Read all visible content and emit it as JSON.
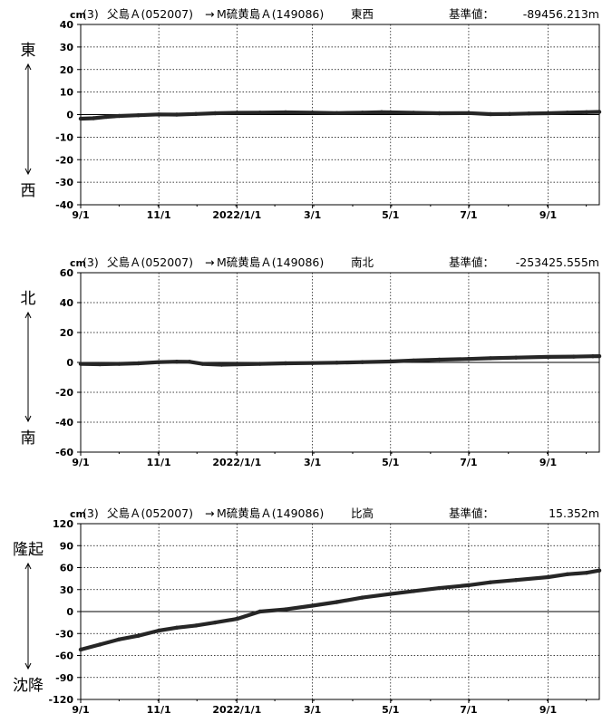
{
  "chart_data": [
    {
      "type": "line",
      "unit": "cm",
      "number": "(3)",
      "station_from": "父島Ａ(052007)",
      "arrow_symbol": "→",
      "station_to": "M硫黄島Ａ(149086)",
      "component": "東西",
      "reference_label": "基準値：",
      "reference_value": "-89456.213m",
      "direction_positive": "東",
      "direction_negative": "西",
      "ylim": [
        -40,
        40
      ],
      "yticks": [
        40,
        30,
        20,
        10,
        0,
        -10,
        -20,
        -30,
        -40
      ],
      "xlim": [
        0,
        405
      ],
      "x_ticks": [
        {
          "label": "9/1",
          "pos": 0
        },
        {
          "label": "11/1",
          "pos": 61
        },
        {
          "label": "2022/1/1",
          "pos": 122
        },
        {
          "label": "3/1",
          "pos": 181
        },
        {
          "label": "5/1",
          "pos": 242
        },
        {
          "label": "7/1",
          "pos": 303
        },
        {
          "label": "9/1",
          "pos": 365
        }
      ],
      "grid": true,
      "x": [
        0,
        10,
        20,
        30,
        45,
        61,
        75,
        90,
        105,
        122,
        140,
        160,
        181,
        200,
        220,
        235,
        242,
        260,
        280,
        303,
        320,
        335,
        350,
        365,
        380,
        395,
        405
      ],
      "values": [
        -1.8,
        -1.6,
        -1.0,
        -0.6,
        -0.3,
        0.1,
        0.0,
        0.3,
        0.6,
        0.8,
        0.9,
        1.0,
        0.9,
        0.7,
        0.9,
        1.1,
        1.0,
        0.8,
        0.6,
        0.7,
        0.2,
        0.3,
        0.5,
        0.6,
        0.9,
        1.1,
        1.2
      ]
    },
    {
      "type": "line",
      "unit": "cm",
      "number": "(3)",
      "station_from": "父島Ａ(052007)",
      "arrow_symbol": "→",
      "station_to": "M硫黄島Ａ(149086)",
      "component": "南北",
      "reference_label": "基準値：",
      "reference_value": "-253425.555m",
      "direction_positive": "北",
      "direction_negative": "南",
      "ylim": [
        -60,
        60
      ],
      "yticks": [
        60,
        40,
        20,
        0,
        -20,
        -40,
        -60
      ],
      "xlim": [
        0,
        405
      ],
      "x_ticks": [
        {
          "label": "9/1",
          "pos": 0
        },
        {
          "label": "11/1",
          "pos": 61
        },
        {
          "label": "2022/1/1",
          "pos": 122
        },
        {
          "label": "3/1",
          "pos": 181
        },
        {
          "label": "5/1",
          "pos": 242
        },
        {
          "label": "7/1",
          "pos": 303
        },
        {
          "label": "9/1",
          "pos": 365
        }
      ],
      "grid": true,
      "x": [
        0,
        15,
        30,
        45,
        61,
        75,
        85,
        95,
        110,
        122,
        140,
        160,
        181,
        200,
        220,
        242,
        260,
        280,
        303,
        320,
        340,
        365,
        385,
        400,
        405
      ],
      "values": [
        -1.0,
        -1.2,
        -1.0,
        -0.6,
        0.2,
        0.5,
        0.4,
        -1.0,
        -1.5,
        -1.3,
        -1.0,
        -0.6,
        -0.4,
        -0.2,
        0.2,
        0.6,
        1.3,
        1.8,
        2.3,
        2.8,
        3.2,
        3.7,
        3.9,
        4.1,
        4.2
      ]
    },
    {
      "type": "line",
      "unit": "cm",
      "number": "(3)",
      "station_from": "父島Ａ(052007)",
      "arrow_symbol": "→",
      "station_to": "M硫黄島Ａ(149086)",
      "component": "比高",
      "reference_label": "基準値：",
      "reference_value": "15.352m",
      "direction_positive": "隆起",
      "direction_negative": "沈降",
      "ylim": [
        -120,
        120
      ],
      "yticks": [
        120,
        90,
        60,
        30,
        0,
        -30,
        -60,
        -90,
        -120
      ],
      "xlim": [
        0,
        405
      ],
      "x_ticks": [
        {
          "label": "9/1",
          "pos": 0
        },
        {
          "label": "11/1",
          "pos": 61
        },
        {
          "label": "2022/1/1",
          "pos": 122
        },
        {
          "label": "3/1",
          "pos": 181
        },
        {
          "label": "5/1",
          "pos": 242
        },
        {
          "label": "7/1",
          "pos": 303
        },
        {
          "label": "9/1",
          "pos": 365
        }
      ],
      "grid": true,
      "x": [
        0,
        15,
        30,
        45,
        61,
        75,
        90,
        105,
        122,
        140,
        160,
        181,
        200,
        220,
        242,
        260,
        280,
        303,
        320,
        340,
        365,
        380,
        395,
        405
      ],
      "values": [
        -52,
        -45,
        -38,
        -33,
        -26,
        -22,
        -19,
        -15,
        -10,
        0,
        3,
        8,
        13,
        19,
        24,
        28,
        32,
        36,
        40,
        43,
        47,
        51,
        53,
        56
      ]
    }
  ]
}
